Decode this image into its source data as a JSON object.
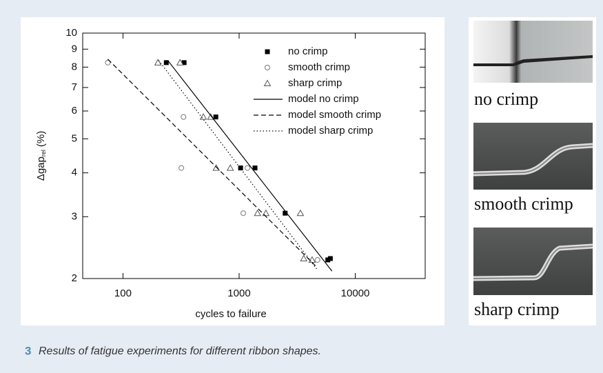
{
  "chart_data": {
    "type": "scatter",
    "xlabel": "cycles to failure",
    "ylabel": {
      "main": "Δgap",
      "subscript": "rel",
      "unit": "(%)"
    },
    "xscale": "log",
    "yscale": "log",
    "xlim": [
      45,
      40000
    ],
    "ylim": [
      2,
      10
    ],
    "xticks": [
      100,
      1000,
      10000
    ],
    "yticks": [
      2,
      3,
      4,
      5,
      6,
      7,
      8,
      9,
      10
    ],
    "legend": "upper right",
    "series": [
      {
        "name": "no crimp",
        "color": "#000000",
        "marker": "square",
        "x": [
          236,
          336,
          630,
          1030,
          1370,
          2490,
          5800,
          6100
        ],
        "values": [
          8.24,
          8.24,
          5.77,
          4.13,
          4.13,
          3.07,
          2.26,
          2.28
        ]
      },
      {
        "name": "smooth crimp",
        "color": "#777777",
        "marker": "circle",
        "x": [
          74,
          332,
          318,
          1085,
          1180,
          4730
        ],
        "values": [
          8.24,
          5.77,
          4.13,
          3.07,
          4.13,
          2.26
        ]
      },
      {
        "name": "sharp crimp",
        "color": "#555555",
        "marker": "triangle",
        "x": [
          200,
          310,
          492,
          570,
          635,
          840,
          1440,
          1700,
          3370,
          3600,
          4250
        ],
        "values": [
          8.24,
          8.24,
          5.77,
          5.77,
          4.13,
          4.13,
          3.07,
          3.07,
          3.07,
          2.28,
          2.26
        ]
      },
      {
        "name": "model no crimp",
        "color": "#000000",
        "line_style": "solid",
        "x": [
          243,
          6300
        ],
        "values": [
          8.36,
          2.1
        ]
      },
      {
        "name": "model smooth crimp",
        "color": "#000000",
        "line_style": "dashed",
        "x": [
          74,
          4700
        ],
        "values": [
          8.43,
          2.15
        ]
      },
      {
        "name": "model sharp crimp",
        "color": "#000000",
        "line_style": "dotted",
        "x": [
          203,
          4650
        ],
        "values": [
          8.36,
          2.13
        ]
      }
    ]
  },
  "photos": [
    {
      "caption": "no crimp"
    },
    {
      "caption": "smooth crimp"
    },
    {
      "caption": "sharp crimp"
    }
  ],
  "figure": {
    "number": "3",
    "caption": "Results of fatigue experiments for different ribbon shapes."
  }
}
